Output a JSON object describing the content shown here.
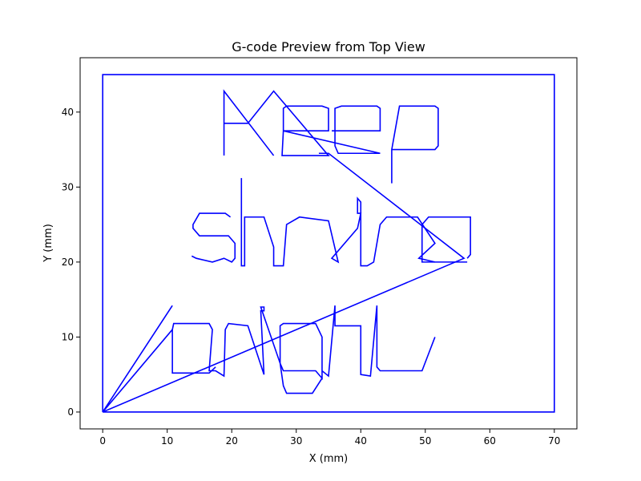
{
  "chart_data": {
    "type": "line",
    "title": "G-code Preview from Top View",
    "xlabel": "X (mm)",
    "ylabel": "Y (mm)",
    "xlim": [
      -3.5,
      73.5
    ],
    "ylim": [
      -2.25,
      47.25
    ],
    "grid": false,
    "line_color": "#0000ff",
    "x_ticks": [
      0,
      10,
      20,
      30,
      40,
      50,
      60,
      70
    ],
    "y_ticks": [
      0,
      10,
      20,
      30,
      40
    ],
    "series": [
      {
        "segments": [
          [
            [
              0,
              0
            ],
            [
              0,
              45
            ],
            [
              70,
              45
            ],
            [
              70,
              0
            ],
            [
              0,
              0
            ],
            [
              56,
              20.5
            ],
            [
              35,
              34.5
            ],
            [
              33.5,
              34.5
            ]
          ],
          [
            [
              18.8,
              34.2
            ],
            [
              18.8,
              42.8
            ],
            [
              26.5,
              34.2
            ]
          ],
          [
            [
              18.8,
              38.5
            ],
            [
              22.5,
              38.5
            ],
            [
              26.5,
              42.8
            ],
            [
              35,
              34.2
            ],
            [
              27.8,
              34.2
            ],
            [
              28,
              37.5
            ],
            [
              35,
              37.5
            ],
            [
              35,
              40.5
            ],
            [
              34,
              40.8
            ],
            [
              28.5,
              40.8
            ],
            [
              28,
              40.5
            ],
            [
              28,
              37.5
            ],
            [
              43,
              34.5
            ],
            [
              36.5,
              34.5
            ],
            [
              36,
              35.5
            ],
            [
              36,
              40.5
            ],
            [
              37,
              40.8
            ],
            [
              42.5,
              40.8
            ],
            [
              43,
              40.5
            ],
            [
              43,
              37.5
            ],
            [
              35.5,
              37.5
            ]
          ],
          [
            [
              44.8,
              30.5
            ],
            [
              44.8,
              35
            ],
            [
              51.5,
              35
            ],
            [
              52,
              35.5
            ],
            [
              52,
              40.5
            ],
            [
              51.5,
              40.8
            ],
            [
              46,
              40.8
            ],
            [
              44.8,
              35
            ]
          ],
          [
            [
              56.5,
              20.5
            ],
            [
              57,
              21
            ],
            [
              57,
              26
            ],
            [
              56,
              26
            ],
            [
              50.5,
              26
            ],
            [
              49.5,
              25
            ],
            [
              49.5,
              20
            ],
            [
              56.5,
              20
            ]
          ],
          [
            [
              51.5,
              20
            ],
            [
              49,
              20.5
            ],
            [
              51.5,
              22.5
            ],
            [
              48.8,
              26
            ],
            [
              44,
              26
            ],
            [
              43,
              25
            ],
            [
              42,
              20
            ],
            [
              41,
              19.5
            ],
            [
              40,
              19.5
            ],
            [
              40,
              28
            ],
            [
              39.5,
              28.5
            ],
            [
              39.5,
              26.5
            ],
            [
              40,
              26.5
            ],
            [
              39.5,
              24.5
            ],
            [
              35.5,
              20.5
            ],
            [
              36.5,
              20
            ],
            [
              35,
              25.5
            ],
            [
              30.5,
              26
            ],
            [
              28.5,
              25
            ],
            [
              28,
              19.5
            ],
            [
              26.5,
              19.5
            ],
            [
              26.5,
              20.5
            ],
            [
              26.5,
              22
            ],
            [
              25,
              26
            ],
            [
              22,
              26
            ],
            [
              22,
              19.5
            ],
            [
              21.5,
              19.5
            ],
            [
              21.5,
              29
            ],
            [
              21.5,
              31.2
            ]
          ],
          [
            [
              51.5,
              10
            ],
            [
              49.5,
              5.5
            ],
            [
              43,
              5.5
            ],
            [
              42.5,
              6
            ],
            [
              42.5,
              14.2
            ],
            [
              41.5,
              4.8
            ],
            [
              40,
              5
            ],
            [
              40,
              11.5
            ],
            [
              36,
              11.5
            ],
            [
              36,
              14.2
            ],
            [
              35,
              4.8
            ],
            [
              34,
              5.5
            ],
            [
              34,
              4.5
            ],
            [
              33,
              5.5
            ],
            [
              28,
              5.5
            ],
            [
              27.5,
              6.5
            ],
            [
              27.5,
              11.5
            ],
            [
              28,
              11.8
            ],
            [
              33,
              11.8
            ],
            [
              34,
              10
            ],
            [
              34,
              4.5
            ],
            [
              32.5,
              2.5
            ],
            [
              28.5,
              2.5
            ],
            [
              28,
              3.5
            ],
            [
              27.5,
              6.5
            ],
            [
              24.5,
              14
            ],
            [
              25,
              14
            ],
            [
              25,
              13.5
            ],
            [
              24.5,
              13.5
            ],
            [
              25,
              5
            ],
            [
              22.5,
              11.5
            ],
            [
              19.5,
              11.8
            ],
            [
              19,
              11
            ],
            [
              18.8,
              4.8
            ],
            [
              17.5,
              5.5
            ],
            [
              16.5,
              5.5
            ],
            [
              17,
              11
            ],
            [
              16.5,
              11.8
            ],
            [
              11,
              11.8
            ],
            [
              10.8,
              11
            ],
            [
              10.8,
              5.2
            ],
            [
              16.5,
              5.2
            ],
            [
              17.5,
              6
            ]
          ],
          [
            [
              10.8,
              14.2
            ],
            [
              0,
              0
            ],
            [
              10.8,
              11
            ]
          ],
          [
            [
              13.8,
              20.8
            ],
            [
              14.5,
              20.5
            ],
            [
              17,
              20
            ],
            [
              18.8,
              20.5
            ],
            [
              20,
              20
            ],
            [
              20.5,
              20.5
            ],
            [
              20.5,
              22.5
            ],
            [
              19.5,
              23.5
            ],
            [
              15,
              23.5
            ],
            [
              14,
              24.5
            ],
            [
              14,
              25
            ],
            [
              15,
              26.5
            ],
            [
              19,
              26.5
            ],
            [
              19.8,
              26
            ]
          ]
        ]
      }
    ]
  }
}
